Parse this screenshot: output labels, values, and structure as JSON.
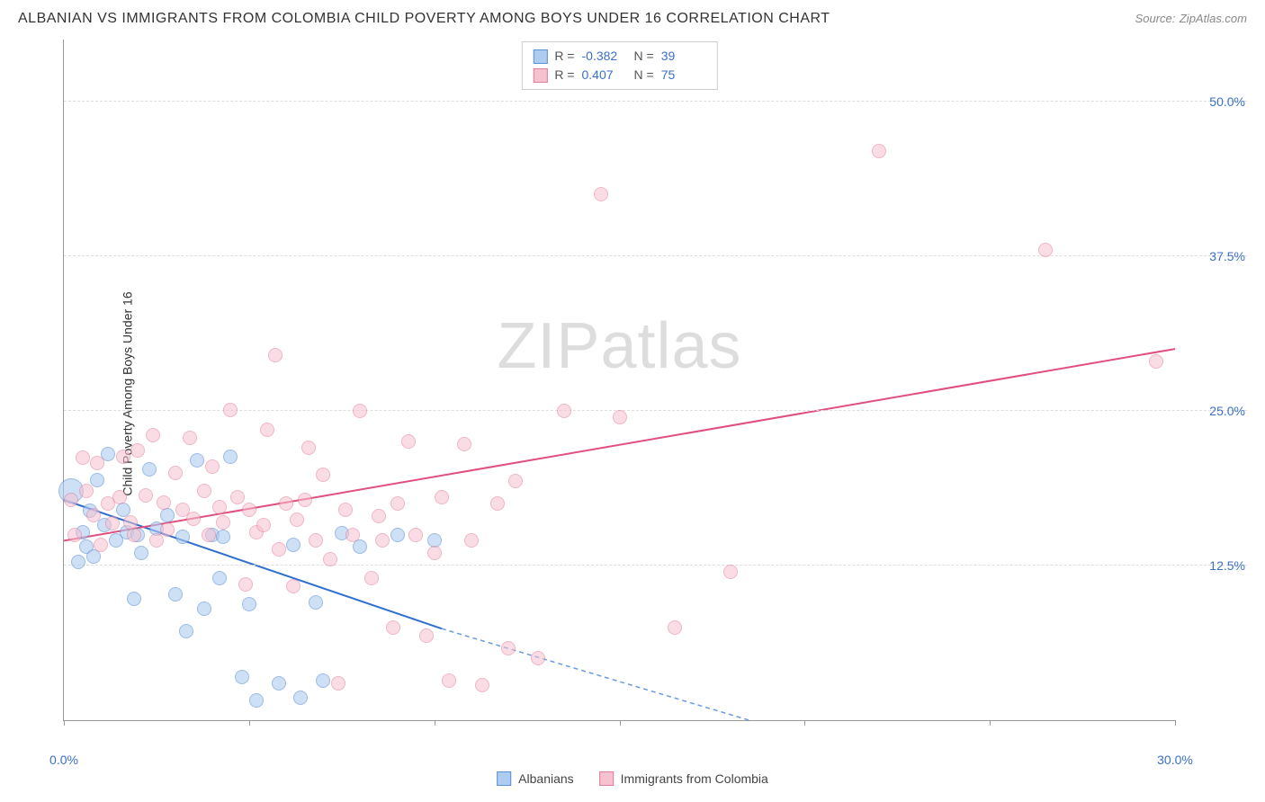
{
  "title": "ALBANIAN VS IMMIGRANTS FROM COLOMBIA CHILD POVERTY AMONG BOYS UNDER 16 CORRELATION CHART",
  "source_label": "Source:",
  "source_value": "ZipAtlas.com",
  "ylabel": "Child Poverty Among Boys Under 16",
  "watermark_a": "ZIP",
  "watermark_b": "atlas",
  "chart": {
    "type": "scatter",
    "xlim": [
      0,
      30
    ],
    "ylim": [
      0,
      55
    ],
    "x_ticks": [
      0,
      5,
      10,
      15,
      20,
      25,
      30
    ],
    "x_tick_labels": {
      "0": "0.0%",
      "30": "30.0%"
    },
    "y_ticks": [
      12.5,
      25.0,
      37.5,
      50.0
    ],
    "y_tick_labels": [
      "12.5%",
      "25.0%",
      "37.5%",
      "50.0%"
    ],
    "grid_color": "#dddddd",
    "axis_color": "#999999",
    "tick_label_color": "#3b6fc9",
    "background_color": "#ffffff",
    "point_radius": 8,
    "large_point_radius": 14,
    "series": [
      {
        "name": "Albanians",
        "fill": "#aeccf0",
        "stroke": "#5b8fd6",
        "fill_opacity": 0.6,
        "R": "-0.382",
        "N": "39",
        "trend": {
          "x1": 0,
          "y1": 17.8,
          "x2": 10.2,
          "y2": 7.4,
          "color": "#2f6fd0",
          "width": 2
        },
        "trend_ext": {
          "x1": 10.2,
          "y1": 7.4,
          "x2": 18.5,
          "y2": 0,
          "color": "#6a9ae0",
          "dash": true
        },
        "points": [
          [
            0.2,
            18.5,
            "large"
          ],
          [
            0.4,
            12.8
          ],
          [
            0.5,
            15.2
          ],
          [
            0.6,
            14.0
          ],
          [
            0.7,
            16.9
          ],
          [
            0.8,
            13.2
          ],
          [
            0.9,
            19.4
          ],
          [
            1.1,
            15.8
          ],
          [
            1.2,
            21.5
          ],
          [
            1.4,
            14.5
          ],
          [
            1.6,
            17.0
          ],
          [
            1.7,
            15.2
          ],
          [
            1.9,
            9.8
          ],
          [
            2.0,
            15.0
          ],
          [
            2.1,
            13.5
          ],
          [
            2.3,
            20.3
          ],
          [
            2.5,
            15.5
          ],
          [
            2.8,
            16.6
          ],
          [
            3.0,
            10.2
          ],
          [
            3.2,
            14.8
          ],
          [
            3.3,
            7.2
          ],
          [
            3.6,
            21.0
          ],
          [
            3.8,
            9.0
          ],
          [
            4.0,
            15.0
          ],
          [
            4.2,
            11.5
          ],
          [
            4.3,
            14.8
          ],
          [
            4.5,
            21.3
          ],
          [
            4.8,
            3.5
          ],
          [
            5.0,
            9.4
          ],
          [
            5.2,
            1.6
          ],
          [
            5.8,
            3.0
          ],
          [
            6.2,
            14.2
          ],
          [
            6.4,
            1.8
          ],
          [
            6.8,
            9.5
          ],
          [
            7.0,
            3.2
          ],
          [
            7.5,
            15.1
          ],
          [
            8.0,
            14.0
          ],
          [
            9.0,
            15.0
          ],
          [
            10.0,
            14.5
          ]
        ]
      },
      {
        "name": "Immigrants from Colombia",
        "fill": "#f6c2cf",
        "stroke": "#e27a9a",
        "fill_opacity": 0.55,
        "R": "0.407",
        "N": "75",
        "trend": {
          "x1": 0,
          "y1": 14.5,
          "x2": 30,
          "y2": 30.0,
          "color": "#e04f7e",
          "width": 2
        },
        "points": [
          [
            0.2,
            17.8
          ],
          [
            0.3,
            15.0
          ],
          [
            0.5,
            21.2
          ],
          [
            0.6,
            18.5
          ],
          [
            0.8,
            16.6
          ],
          [
            0.9,
            20.8
          ],
          [
            1.0,
            14.2
          ],
          [
            1.2,
            17.5
          ],
          [
            1.3,
            15.9
          ],
          [
            1.5,
            18.0
          ],
          [
            1.6,
            21.3
          ],
          [
            1.8,
            16.0
          ],
          [
            1.9,
            15.0
          ],
          [
            2.0,
            21.8
          ],
          [
            2.2,
            18.2
          ],
          [
            2.4,
            23.0
          ],
          [
            2.5,
            14.5
          ],
          [
            2.7,
            17.6
          ],
          [
            2.8,
            15.4
          ],
          [
            3.0,
            20.0
          ],
          [
            3.2,
            17.0
          ],
          [
            3.4,
            22.8
          ],
          [
            3.5,
            16.3
          ],
          [
            3.8,
            18.5
          ],
          [
            3.9,
            15.0
          ],
          [
            4.0,
            20.5
          ],
          [
            4.2,
            17.2
          ],
          [
            4.3,
            16.0
          ],
          [
            4.5,
            25.1
          ],
          [
            4.7,
            18.0
          ],
          [
            4.9,
            11.0
          ],
          [
            5.0,
            17.0
          ],
          [
            5.2,
            15.2
          ],
          [
            5.5,
            23.5
          ],
          [
            5.7,
            29.5
          ],
          [
            5.8,
            13.8
          ],
          [
            6.0,
            17.5
          ],
          [
            6.2,
            10.8
          ],
          [
            6.3,
            16.2
          ],
          [
            6.6,
            22.0
          ],
          [
            6.8,
            14.5
          ],
          [
            7.0,
            19.8
          ],
          [
            7.2,
            13.0
          ],
          [
            7.4,
            3.0
          ],
          [
            7.6,
            17.0
          ],
          [
            7.8,
            15.0
          ],
          [
            8.0,
            25.0
          ],
          [
            8.3,
            11.5
          ],
          [
            8.6,
            14.5
          ],
          [
            8.9,
            7.5
          ],
          [
            9.0,
            17.5
          ],
          [
            9.3,
            22.5
          ],
          [
            9.5,
            15.0
          ],
          [
            9.8,
            6.8
          ],
          [
            10.0,
            13.5
          ],
          [
            10.2,
            18.0
          ],
          [
            10.4,
            3.2
          ],
          [
            10.8,
            22.3
          ],
          [
            11.0,
            14.5
          ],
          [
            11.3,
            2.8
          ],
          [
            11.7,
            17.5
          ],
          [
            12.0,
            5.8
          ],
          [
            12.2,
            19.3
          ],
          [
            12.8,
            5.0
          ],
          [
            13.5,
            25.0
          ],
          [
            14.5,
            42.5
          ],
          [
            15.0,
            24.5
          ],
          [
            16.5,
            7.5
          ],
          [
            18.0,
            12.0
          ],
          [
            22.0,
            46.0
          ],
          [
            26.5,
            38.0
          ],
          [
            29.5,
            29.0
          ],
          [
            5.4,
            15.8
          ],
          [
            6.5,
            17.8
          ],
          [
            8.5,
            16.5
          ]
        ]
      }
    ]
  },
  "legend": {
    "swatch_border_blue": "#5b8fd6",
    "swatch_fill_blue": "#c9ddf5",
    "swatch_border_pink": "#e27a9a",
    "swatch_fill_pink": "#f9d6e0"
  }
}
